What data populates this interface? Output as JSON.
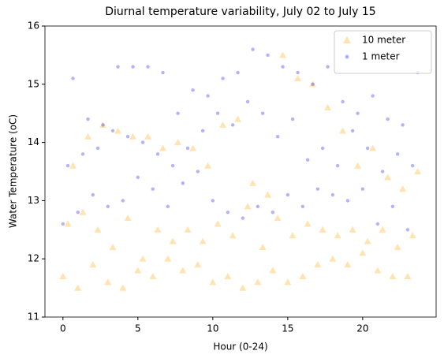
{
  "chart_data": {
    "type": "scatter",
    "title": "Diurnal temperature variability, July 02 to July 15",
    "x_label": "Hour (0-24)",
    "y_label": "Water Temperature (oC)",
    "xlim": [
      -1.2,
      24.9
    ],
    "ylim": [
      11,
      16
    ],
    "xticks": [
      0,
      5,
      10,
      15,
      20
    ],
    "yticks": [
      11,
      12,
      13,
      14,
      15,
      16
    ],
    "grid": false,
    "legend": "upper right",
    "x": [
      0,
      0.33,
      0.67,
      1,
      1.33,
      1.67,
      2,
      2.33,
      2.67,
      3,
      3.33,
      3.67,
      4,
      4.33,
      4.67,
      5,
      5.33,
      5.67,
      6,
      6.33,
      6.67,
      7,
      7.33,
      7.67,
      8,
      8.33,
      8.67,
      9,
      9.33,
      9.67,
      10,
      10.33,
      10.67,
      11,
      11.33,
      11.67,
      12,
      12.33,
      12.67,
      13,
      13.33,
      13.67,
      14,
      14.33,
      14.67,
      15,
      15.33,
      15.67,
      16,
      16.33,
      16.67,
      17,
      17.33,
      17.67,
      18,
      18.33,
      18.67,
      19,
      19.33,
      19.67,
      20,
      20.33,
      20.67,
      21,
      21.33,
      21.67,
      22,
      22.33,
      22.67,
      23,
      23.33,
      23.67
    ],
    "series": [
      {
        "name": "10 meter",
        "color": "orange",
        "marker": "triangle",
        "values": [
          11.7,
          12.6,
          13.6,
          11.5,
          12.8,
          14.1,
          11.9,
          12.5,
          14.3,
          11.6,
          12.2,
          14.2,
          11.5,
          12.7,
          14.1,
          11.8,
          12.0,
          14.1,
          11.7,
          12.5,
          13.9,
          12.0,
          12.3,
          14.0,
          11.8,
          12.5,
          13.9,
          11.9,
          12.3,
          13.6,
          11.6,
          12.6,
          14.3,
          11.7,
          12.4,
          14.4,
          11.5,
          12.9,
          13.3,
          11.6,
          12.2,
          13.1,
          11.8,
          12.7,
          15.5,
          11.6,
          12.4,
          15.1,
          11.7,
          12.6,
          15.0,
          11.9,
          12.5,
          14.6,
          12.0,
          12.4,
          14.2,
          11.9,
          12.5,
          13.6,
          12.1,
          12.3,
          13.9,
          11.8,
          12.5,
          13.4,
          11.7,
          12.2,
          13.2,
          11.7,
          12.4,
          13.5
        ]
      },
      {
        "name": "1 meter",
        "color": "blue",
        "marker": "circle",
        "values": [
          12.6,
          13.6,
          15.1,
          12.8,
          13.8,
          14.4,
          13.1,
          13.9,
          14.3,
          12.9,
          14.2,
          15.3,
          13.0,
          14.1,
          15.3,
          13.4,
          14.0,
          15.3,
          13.2,
          13.8,
          15.2,
          12.9,
          13.6,
          14.5,
          13.3,
          13.9,
          14.9,
          13.5,
          14.2,
          14.8,
          13.0,
          14.5,
          15.1,
          12.8,
          14.3,
          15.2,
          12.7,
          14.7,
          15.6,
          12.9,
          14.5,
          15.5,
          12.8,
          14.1,
          15.3,
          13.1,
          14.4,
          15.2,
          12.9,
          13.7,
          15.0,
          13.2,
          13.9,
          15.3,
          13.1,
          13.6,
          14.7,
          13.0,
          14.2,
          14.5,
          13.2,
          13.9,
          14.8,
          12.6,
          13.5,
          14.4,
          12.9,
          13.8,
          14.3,
          12.5,
          13.6,
          15.2
        ]
      }
    ]
  }
}
